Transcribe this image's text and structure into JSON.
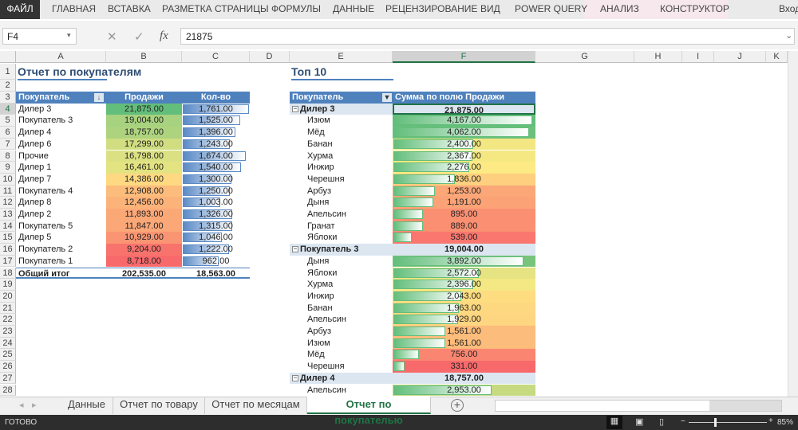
{
  "ribbon": {
    "tabs": [
      "ФАЙЛ",
      "ГЛАВНАЯ",
      "ВСТАВКА",
      "РАЗМЕТКА СТРАНИЦЫ",
      "ФОРМУЛЫ",
      "ДАННЫЕ",
      "РЕЦЕНЗИРОВАНИЕ",
      "ВИД",
      "POWER QUERY",
      "АНАЛИЗ",
      "КОНСТРУКТОР"
    ],
    "signin": "Вход"
  },
  "formula_bar": {
    "name_box": "F4",
    "value": "21875",
    "fx": "fx"
  },
  "columns": [
    "A",
    "B",
    "C",
    "D",
    "E",
    "F",
    "G",
    "H",
    "I",
    "J",
    "K"
  ],
  "selected_column": "F",
  "colors": {
    "header": "#4f81bd",
    "green": "#63be7b",
    "yellow": "#ffeb84",
    "red": "#f8696b",
    "accent": "#217346"
  },
  "left": {
    "title": "Отчет по покупателям",
    "headers": [
      "Покупатель",
      "Продажи",
      "Кол-во"
    ],
    "rows": [
      [
        "Дилер 3",
        "21,875.00",
        "1,761.00"
      ],
      [
        "Покупатель 3",
        "19,004.00",
        "1,525.00"
      ],
      [
        "Дилер 4",
        "18,757.00",
        "1,396.00"
      ],
      [
        "Дилер 6",
        "17,299.00",
        "1,243.00"
      ],
      [
        "Прочие",
        "16,798.00",
        "1,674.00"
      ],
      [
        "Дилер 1",
        "16,461.00",
        "1,540.00"
      ],
      [
        "Дилер 7",
        "14,386.00",
        "1,300.00"
      ],
      [
        "Покупатель 4",
        "12,908.00",
        "1,250.00"
      ],
      [
        "Дилер 8",
        "12,456.00",
        "1,003.00"
      ],
      [
        "Дилер 2",
        "11,893.00",
        "1,326.00"
      ],
      [
        "Покупатель 5",
        "11,847.00",
        "1,315.00"
      ],
      [
        "Дилер 5",
        "10,929.00",
        "1,046.00"
      ],
      [
        "Покупатель 2",
        "9,204.00",
        "1,222.00"
      ],
      [
        "Покупатель 1",
        "8,718.00",
        "962.00"
      ]
    ],
    "total": [
      "Общий итог",
      "202,535.00",
      "18,563.00"
    ]
  },
  "right": {
    "title": "Топ 10",
    "headers": [
      "Покупатель",
      "Сумма по полю Продажи"
    ],
    "groups": [
      {
        "name": "Дилер 3",
        "total": "21,875.00",
        "items": [
          [
            "Изюм",
            "4,167.00"
          ],
          [
            "Мёд",
            "4,062.00"
          ],
          [
            "Банан",
            "2,400.00"
          ],
          [
            "Хурма",
            "2,367.00"
          ],
          [
            "Инжир",
            "2,276.00"
          ],
          [
            "Черешня",
            "1,836.00"
          ],
          [
            "Арбуз",
            "1,253.00"
          ],
          [
            "Дыня",
            "1,191.00"
          ],
          [
            "Апельсин",
            "895.00"
          ],
          [
            "Гранат",
            "889.00"
          ],
          [
            "Яблоки",
            "539.00"
          ]
        ]
      },
      {
        "name": "Покупатель 3",
        "total": "19,004.00",
        "items": [
          [
            "Дыня",
            "3,892.00"
          ],
          [
            "Яблоки",
            "2,572.00"
          ],
          [
            "Хурма",
            "2,396.00"
          ],
          [
            "Инжир",
            "2,043.00"
          ],
          [
            "Банан",
            "1,963.00"
          ],
          [
            "Апельсин",
            "1,929.00"
          ],
          [
            "Арбуз",
            "1,561.00"
          ],
          [
            "Изюм",
            "1,561.00"
          ],
          [
            "Мёд",
            "756.00"
          ],
          [
            "Черешня",
            "331.00"
          ]
        ]
      },
      {
        "name": "Дилер 4",
        "total": "18,757.00",
        "items": [
          [
            "Апельсин",
            "2,953.00"
          ]
        ]
      }
    ]
  },
  "sheets": {
    "tabs": [
      "Данные",
      "Отчет по товару",
      "Отчет по месяцам",
      "Отчет по покупателью"
    ],
    "active": 3
  },
  "status": {
    "text": "ГОТОВО",
    "zoom": "85%"
  }
}
